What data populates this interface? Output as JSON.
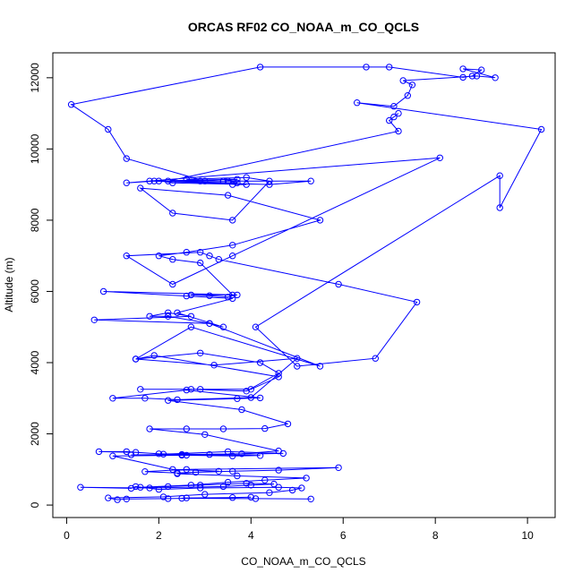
{
  "chart_data": {
    "type": "line",
    "title": "ORCAS RF02 CO_NOAA_m_CO_QCLS",
    "xlabel": "CO_NOAA_m_CO_QCLS",
    "ylabel": "Altitude (m)",
    "xlim": [
      -0.3,
      10.6
    ],
    "ylim": [
      -350,
      12700
    ],
    "xticks": [
      0,
      2,
      4,
      6,
      8,
      10
    ],
    "yticks": [
      0,
      2000,
      4000,
      6000,
      8000,
      10000,
      12000
    ],
    "grid": false,
    "color": "#0000ff",
    "markers": "open-circle",
    "x": [
      5.3,
      4.1,
      2.5,
      2.6,
      3.6,
      4.0,
      2.2,
      1.3,
      1.1,
      0.9,
      2.1,
      3.0,
      4.4,
      4.9,
      5.1,
      4.6,
      2.9,
      2.0,
      1.5,
      1.4,
      0.3,
      1.8,
      3.4,
      4.0,
      4.5,
      3.9,
      2.9,
      2.2,
      1.6,
      2.7,
      3.5,
      4.3,
      5.2,
      3.7,
      2.4,
      2.8,
      3.6,
      4.6,
      5.9,
      2.6,
      1.7,
      2.4,
      3.3,
      2.3,
      1.0,
      2.6,
      4.7,
      3.5,
      2.1,
      1.3,
      0.7,
      1.5,
      2.0,
      3.1,
      4.2,
      3.6,
      2.5,
      1.4,
      2.5,
      3.8,
      4.6,
      3.0,
      1.8,
      2.6,
      3.4,
      4.3,
      4.8,
      3.8,
      2.2,
      3.7,
      4.2,
      2.6,
      1.0,
      1.7,
      2.4,
      4.0,
      5.0,
      3.2,
      1.5,
      2.9,
      4.2,
      4.6,
      3.9,
      2.7,
      1.6,
      2.9,
      4.0,
      4.6,
      1.9,
      1.5,
      2.7,
      5.5,
      3.1,
      0.6,
      2.7,
      2.2,
      1.8,
      2.2,
      3.1,
      3.4,
      2.4,
      3.6,
      2.6,
      0.8,
      3.7,
      2.7,
      3.1,
      3.5,
      3.6,
      2.9,
      2.3,
      2.0,
      2.6,
      3.6,
      5.5,
      3.5,
      1.6,
      2.3,
      3.6,
      4.4,
      3.9,
      2.6,
      3.4,
      3.7,
      1.8,
      4.4,
      5.3,
      3.5,
      2.0,
      2.3,
      3.9,
      3.6,
      3.7,
      1.9,
      1.3,
      8.1,
      3.6,
      2.3,
      1.3,
      2.9,
      3.1,
      3.3,
      5.9,
      7.6,
      6.7,
      5.0,
      4.1,
      9.4,
      9.4,
      10.3,
      6.3,
      7.1,
      7.4,
      7.5,
      7.3,
      8.9,
      9.3,
      8.6,
      9.0,
      8.8,
      8.6,
      7.0,
      6.5,
      4.2,
      0.1,
      0.9,
      1.3,
      3.0,
      3.4,
      2.9,
      2.2,
      7.2,
      7.0,
      7.1,
      7.2
    ],
    "y": [
      170,
      180,
      190,
      200,
      210,
      220,
      180,
      170,
      150,
      200,
      230,
      300,
      350,
      420,
      480,
      500,
      480,
      440,
      520,
      470,
      500,
      480,
      520,
      560,
      590,
      610,
      560,
      520,
      500,
      560,
      640,
      700,
      760,
      820,
      880,
      920,
      950,
      980,
      1050,
      1000,
      940,
      900,
      950,
      1000,
      1380,
      1400,
      1450,
      1500,
      1430,
      1500,
      1500,
      1480,
      1440,
      1420,
      1390,
      1380,
      1400,
      1410,
      1420,
      1440,
      1520,
      1980,
      2140,
      2140,
      2140,
      2150,
      2280,
      2680,
      2940,
      2990,
      3010,
      3230,
      3000,
      3000,
      2960,
      3020,
      4120,
      3930,
      4100,
      4270,
      4000,
      3700,
      3200,
      3250,
      3250,
      3250,
      3250,
      3600,
      4200,
      4100,
      5000,
      3900,
      5100,
      5200,
      5300,
      5400,
      5300,
      5300,
      5100,
      5000,
      5400,
      5800,
      5870,
      6000,
      5900,
      5900,
      5880,
      5840,
      5900,
      6800,
      6900,
      7000,
      7100,
      7300,
      8000,
      8700,
      8900,
      8200,
      8000,
      9100,
      9200,
      9150,
      9100,
      9150,
      9100,
      9000,
      9100,
      9100,
      9100,
      9050,
      9000,
      9000,
      9050,
      9100,
      9050,
      9750,
      7000,
      6200,
      7000,
      7100,
      7000,
      6900,
      6200,
      5700,
      4120,
      3900,
      5000,
      9250,
      8350,
      10550,
      11300,
      11200,
      11500,
      11800,
      11920,
      12050,
      12000,
      12250,
      12220,
      12050,
      12010,
      12300,
      12300,
      12300,
      11250,
      10550,
      9730,
      9100,
      9100,
      9100,
      9100,
      10500,
      10800,
      10900,
      11000
    ]
  }
}
